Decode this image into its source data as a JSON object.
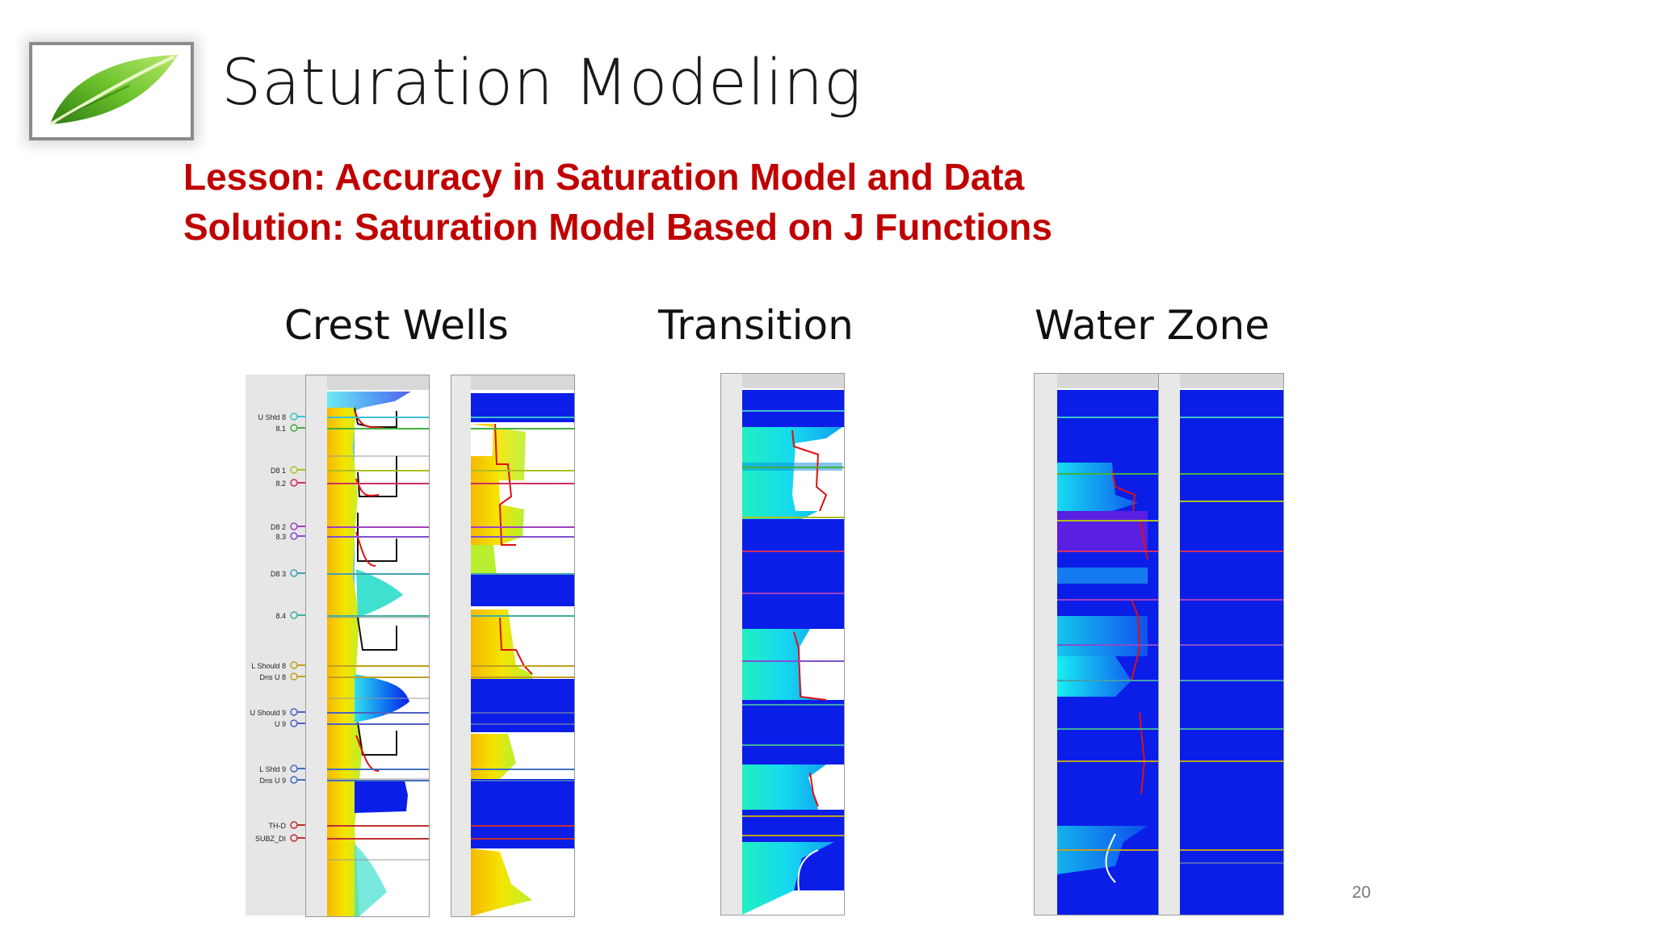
{
  "slide": {
    "title": "Saturation Modeling",
    "lesson_line1": "Lesson: Accuracy in Saturation Model and Data",
    "lesson_line2": "Solution: Saturation Model Based on J Functions",
    "page_number": "20"
  },
  "sections": {
    "crest": "Crest Wells",
    "transition": "Transition",
    "water": "Water Zone"
  },
  "crest_markers": [
    "U Shld 8",
    "8.1",
    "D8 1",
    "8.2",
    "D8 2",
    "8.3",
    "D8 3",
    "8.4",
    "L Should 8",
    "Dns U 8",
    "U Should 9",
    "U 9",
    "L Shld 9",
    "Dns U 9",
    "TH-D",
    "SUBZ_DI"
  ],
  "colors": {
    "title": "#1a1a1a",
    "lesson": "#c00000",
    "leaf": "#4caf2a",
    "log_blue": "#0a1ee8",
    "log_cyan": "#16e0f0",
    "log_yellow": "#f5d800",
    "curve_red": "#e01010"
  }
}
